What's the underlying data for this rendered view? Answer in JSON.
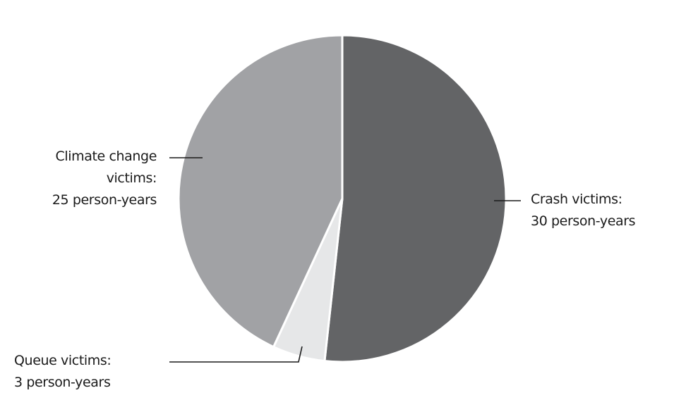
{
  "chart_data": {
    "type": "pie",
    "title": "",
    "unit": "person-years",
    "slices": [
      {
        "name": "Crash victims",
        "value": 30,
        "color": "#636466"
      },
      {
        "name": "Queue victims",
        "value": 3,
        "color": "#e6e7e8"
      },
      {
        "name": "Climate change victims",
        "value": 25,
        "color": "#a1a2a5"
      }
    ],
    "start": "12 o'clock",
    "direction": "clockwise"
  },
  "labels": {
    "climate": {
      "line1": "Climate change",
      "line2": "victims:",
      "line3": "25 person-years"
    },
    "crash": {
      "line1": "Crash victims:",
      "line2": "30 person-years"
    },
    "queue": {
      "line1": "Queue victims:",
      "line2": "3 person-years"
    }
  }
}
